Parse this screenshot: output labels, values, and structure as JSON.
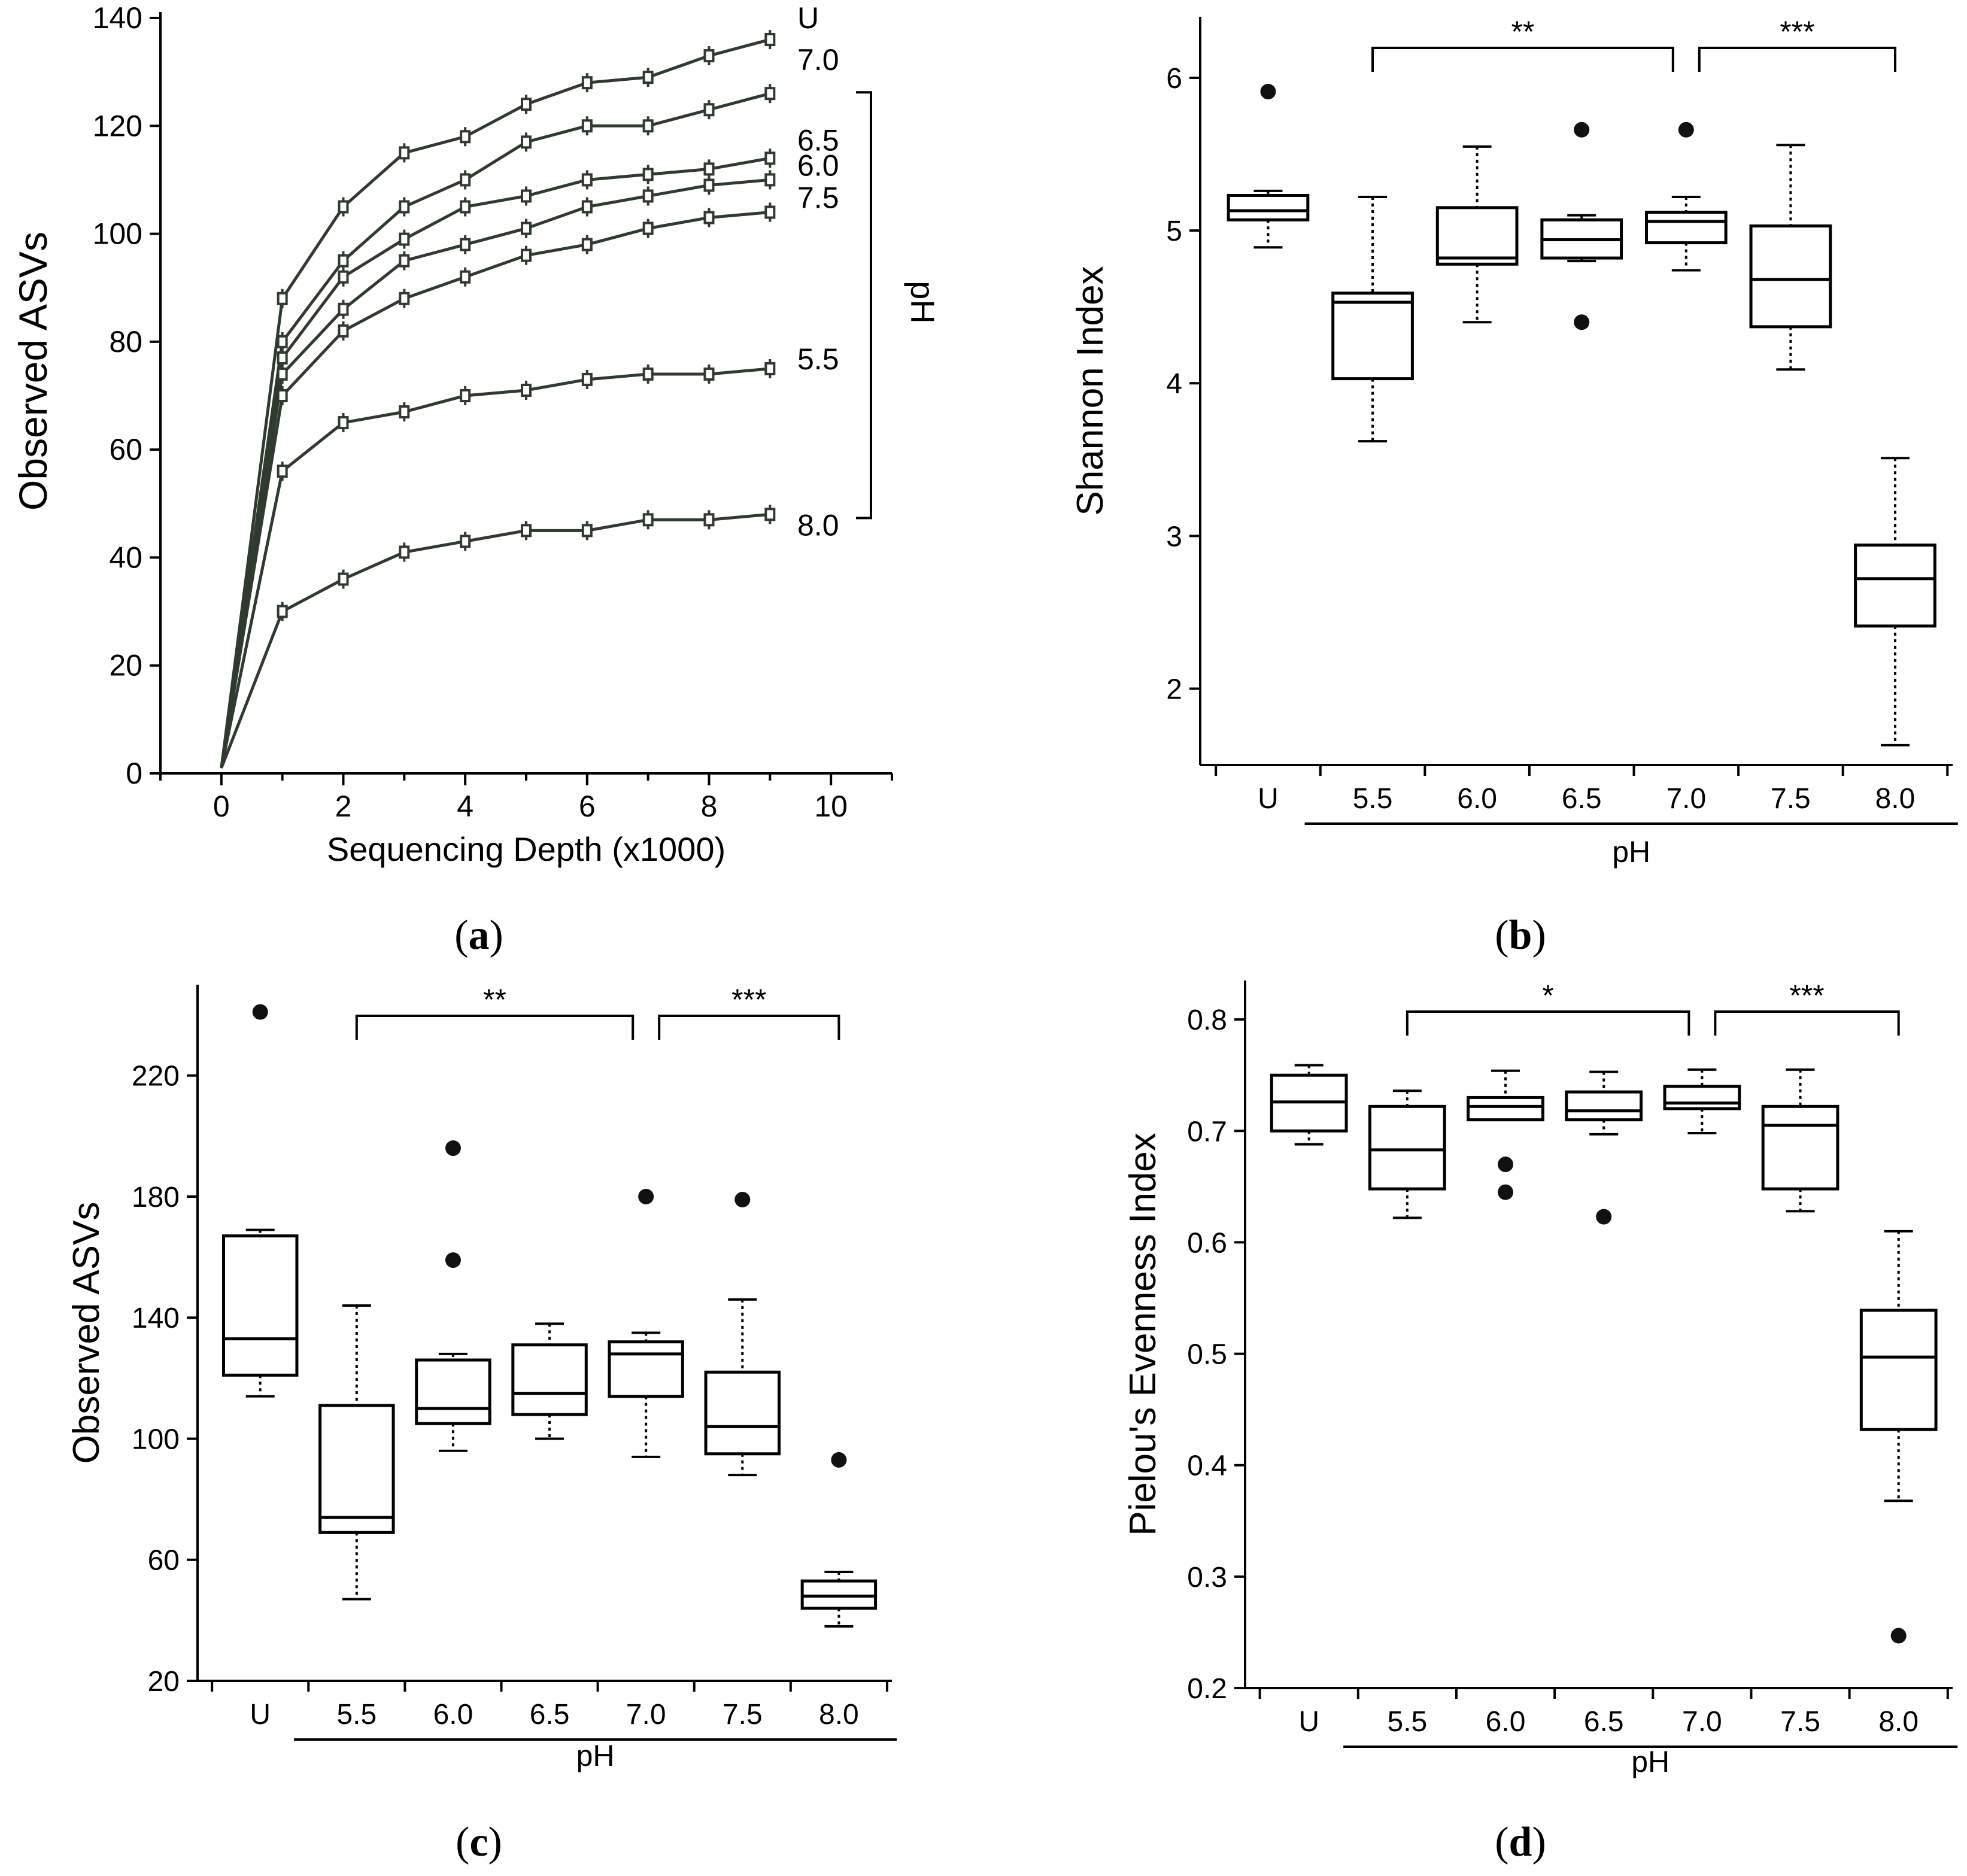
{
  "figure": {
    "panel_labels": [
      "a",
      "b",
      "c",
      "d"
    ]
  },
  "chart_data": [
    {
      "id": "a",
      "type": "line",
      "xlabel": "Sequencing Depth (x1000)",
      "ylabel": "Observed ASVs",
      "xlim": [
        -1,
        11
      ],
      "ylim": [
        0,
        140
      ],
      "xticks": [
        0,
        2,
        4,
        6,
        8,
        10
      ],
      "yticks": [
        0,
        20,
        40,
        60,
        80,
        100,
        120,
        140
      ],
      "group_label": "pH",
      "x": [
        0,
        1,
        2,
        3,
        4,
        5,
        6,
        7,
        8,
        9
      ],
      "series": [
        {
          "name": "U",
          "values": [
            1,
            88,
            105,
            115,
            118,
            124,
            128,
            129,
            133,
            136
          ]
        },
        {
          "name": "7.0",
          "values": [
            1,
            80,
            95,
            105,
            110,
            117,
            120,
            120,
            123,
            126
          ]
        },
        {
          "name": "6.5",
          "values": [
            1,
            77,
            92,
            99,
            105,
            107,
            110,
            111,
            112,
            114
          ]
        },
        {
          "name": "6.0",
          "values": [
            1,
            74,
            86,
            95,
            98,
            101,
            105,
            107,
            109,
            110
          ]
        },
        {
          "name": "7.5",
          "values": [
            1,
            70,
            82,
            88,
            92,
            96,
            98,
            101,
            103,
            104
          ]
        },
        {
          "name": "5.5",
          "values": [
            1,
            56,
            65,
            67,
            70,
            71,
            73,
            74,
            74,
            75
          ]
        },
        {
          "name": "8.0",
          "values": [
            1,
            30,
            36,
            41,
            43,
            45,
            45,
            47,
            47,
            48
          ]
        }
      ]
    },
    {
      "id": "b",
      "type": "box",
      "ylabel": "Shannon Index",
      "xlabel": "pH",
      "ylim": [
        1.5,
        6.4
      ],
      "yticks": [
        2,
        3,
        4,
        5,
        6
      ],
      "categories": [
        "U",
        "5.5",
        "6.0",
        "6.5",
        "7.0",
        "7.5",
        "8.0"
      ],
      "boxes": [
        {
          "category": "U",
          "low": 4.89,
          "q1": 5.07,
          "median": 5.13,
          "q3": 5.23,
          "high": 5.26,
          "outliers": [
            5.91
          ]
        },
        {
          "category": "5.5",
          "low": 3.62,
          "q1": 4.03,
          "median": 4.53,
          "q3": 4.59,
          "high": 5.22,
          "outliers": []
        },
        {
          "category": "6.0",
          "low": 4.4,
          "q1": 4.78,
          "median": 4.82,
          "q3": 5.15,
          "high": 5.55,
          "outliers": []
        },
        {
          "category": "6.5",
          "low": 4.8,
          "q1": 4.82,
          "median": 4.94,
          "q3": 5.07,
          "high": 5.1,
          "outliers": [
            5.66,
            4.4
          ]
        },
        {
          "category": "7.0",
          "low": 4.74,
          "q1": 4.92,
          "median": 5.06,
          "q3": 5.12,
          "high": 5.22,
          "outliers": [
            5.66
          ]
        },
        {
          "category": "7.5",
          "low": 4.09,
          "q1": 4.37,
          "median": 4.68,
          "q3": 5.03,
          "high": 5.56,
          "outliers": []
        },
        {
          "category": "8.0",
          "low": 1.63,
          "q1": 2.41,
          "median": 2.72,
          "q3": 2.94,
          "high": 3.51,
          "outliers": []
        }
      ],
      "brackets": [
        {
          "from": "5.5",
          "to": "7.0",
          "label": "**"
        },
        {
          "from": "7.0",
          "to": "8.0",
          "label": "***"
        }
      ]
    },
    {
      "id": "c",
      "type": "box",
      "ylabel": "Observed ASVs",
      "xlabel": "pH",
      "ylim": [
        20,
        250
      ],
      "yticks": [
        20,
        60,
        100,
        140,
        180,
        220
      ],
      "categories": [
        "U",
        "5.5",
        "6.0",
        "6.5",
        "7.0",
        "7.5",
        "8.0"
      ],
      "boxes": [
        {
          "category": "U",
          "low": 114,
          "q1": 121,
          "median": 133,
          "q3": 167,
          "high": 169,
          "outliers": [
            241
          ]
        },
        {
          "category": "5.5",
          "low": 47,
          "q1": 69,
          "median": 74,
          "q3": 111,
          "high": 144,
          "outliers": []
        },
        {
          "category": "6.0",
          "low": 96,
          "q1": 105,
          "median": 110,
          "q3": 126,
          "high": 128,
          "outliers": [
            196,
            159
          ]
        },
        {
          "category": "6.5",
          "low": 100,
          "q1": 108,
          "median": 115,
          "q3": 131,
          "high": 138,
          "outliers": []
        },
        {
          "category": "7.0",
          "low": 94,
          "q1": 114,
          "median": 128,
          "q3": 132,
          "high": 135,
          "outliers": [
            180
          ]
        },
        {
          "category": "7.5",
          "low": 88,
          "q1": 95,
          "median": 104,
          "q3": 122,
          "high": 146,
          "outliers": [
            179
          ]
        },
        {
          "category": "8.0",
          "low": 38,
          "q1": 44,
          "median": 48,
          "q3": 53,
          "high": 56,
          "outliers": [
            93
          ]
        }
      ],
      "brackets": [
        {
          "from": "5.5",
          "to": "7.0",
          "label": "**"
        },
        {
          "from": "7.0",
          "to": "8.0",
          "label": "***"
        }
      ]
    },
    {
      "id": "d",
      "type": "box",
      "ylabel": "Pielou's Evenness Index",
      "xlabel": "pH",
      "ylim": [
        0.2,
        0.835
      ],
      "yticks": [
        0.2,
        0.3,
        0.4,
        0.5,
        0.6,
        0.7,
        0.8
      ],
      "categories": [
        "U",
        "5.5",
        "6.0",
        "6.5",
        "7.0",
        "7.5",
        "8.0"
      ],
      "boxes": [
        {
          "category": "U",
          "low": 0.688,
          "q1": 0.7,
          "median": 0.726,
          "q3": 0.75,
          "high": 0.759,
          "outliers": []
        },
        {
          "category": "5.5",
          "low": 0.622,
          "q1": 0.648,
          "median": 0.683,
          "q3": 0.722,
          "high": 0.736,
          "outliers": []
        },
        {
          "category": "6.0",
          "low": 0.71,
          "q1": 0.71,
          "median": 0.722,
          "q3": 0.73,
          "high": 0.754,
          "outliers": [
            0.67,
            0.645
          ]
        },
        {
          "category": "6.5",
          "low": 0.697,
          "q1": 0.71,
          "median": 0.718,
          "q3": 0.735,
          "high": 0.753,
          "outliers": [
            0.623
          ]
        },
        {
          "category": "7.0",
          "low": 0.698,
          "q1": 0.72,
          "median": 0.725,
          "q3": 0.74,
          "high": 0.755,
          "outliers": []
        },
        {
          "category": "7.5",
          "low": 0.628,
          "q1": 0.648,
          "median": 0.705,
          "q3": 0.722,
          "high": 0.755,
          "outliers": []
        },
        {
          "category": "8.0",
          "low": 0.368,
          "q1": 0.432,
          "median": 0.497,
          "q3": 0.539,
          "high": 0.61,
          "outliers": [
            0.247
          ]
        }
      ],
      "brackets": [
        {
          "from": "5.5",
          "to": "7.0",
          "label": "*"
        },
        {
          "from": "7.0",
          "to": "8.0",
          "label": "***"
        }
      ]
    }
  ]
}
